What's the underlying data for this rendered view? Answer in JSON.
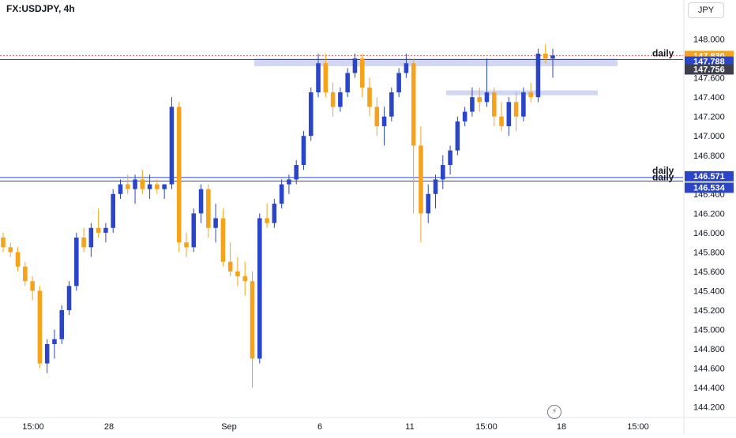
{
  "symbol": "FX:USDJPY, 4h",
  "currency": "JPY",
  "colors": {
    "up": "#2a45c8",
    "down": "#f7a21b",
    "zone": "#c5cdf0",
    "line": "#2a45c8",
    "last_price_bg": "#f7a21b",
    "level_bg": "#2a45c8",
    "grey_bg": "#3d404a"
  },
  "icons": {
    "replay": "replay-icon"
  },
  "chart_data": {
    "type": "candlestick",
    "y_axis": {
      "ticks": [
        "148.000",
        "147.800",
        "147.600",
        "147.400",
        "147.200",
        "147.000",
        "146.800",
        "146.600",
        "146.400",
        "146.200",
        "146.000",
        "145.800",
        "145.600",
        "145.400",
        "145.200",
        "145.000",
        "144.800",
        "144.600",
        "144.400",
        "144.200"
      ],
      "range": [
        144.1,
        148.2
      ]
    },
    "x_axis": {
      "ticks": [
        "15:00",
        "28",
        "Sep",
        "6",
        "11",
        "15:00",
        "18",
        "15:00"
      ]
    },
    "price_labels": [
      {
        "text": "147.830",
        "value": 147.83,
        "style": "last"
      },
      {
        "text": "147.788",
        "value": 147.788,
        "style": "level"
      },
      {
        "text": "147.756",
        "value": 147.756,
        "style": "grey"
      },
      {
        "text": "146.571",
        "value": 146.571,
        "style": "level"
      },
      {
        "text": "146.534",
        "value": 146.534,
        "style": "level"
      }
    ],
    "levels": [
      {
        "value": 147.788,
        "label": "daily"
      },
      {
        "value": 146.571,
        "label": "daily"
      },
      {
        "value": 146.534,
        "label": "daily"
      }
    ],
    "zones": [
      {
        "from": 147.72,
        "to": 147.8
      },
      {
        "from": 147.42,
        "to": 147.47
      }
    ],
    "candles": [
      [
        145.95,
        146.0,
        145.8,
        145.85
      ],
      [
        145.85,
        145.9,
        145.75,
        145.8
      ],
      [
        145.8,
        145.85,
        145.6,
        145.65
      ],
      [
        145.65,
        145.7,
        145.45,
        145.5
      ],
      [
        145.5,
        145.55,
        145.3,
        145.4
      ],
      [
        145.4,
        145.45,
        144.6,
        144.65
      ],
      [
        144.65,
        144.9,
        144.55,
        144.85
      ],
      [
        144.85,
        145.0,
        144.7,
        144.9
      ],
      [
        144.9,
        145.25,
        144.85,
        145.2
      ],
      [
        145.2,
        145.5,
        145.15,
        145.45
      ],
      [
        145.45,
        146.0,
        145.4,
        145.95
      ],
      [
        145.95,
        146.05,
        145.8,
        145.85
      ],
      [
        145.85,
        146.1,
        145.75,
        146.05
      ],
      [
        146.05,
        146.25,
        145.95,
        146.0
      ],
      [
        146.0,
        146.1,
        145.9,
        146.05
      ],
      [
        146.05,
        146.45,
        146.0,
        146.4
      ],
      [
        146.4,
        146.55,
        146.35,
        146.5
      ],
      [
        146.5,
        146.6,
        146.4,
        146.45
      ],
      [
        146.45,
        146.6,
        146.3,
        146.55
      ],
      [
        146.55,
        146.65,
        146.4,
        146.45
      ],
      [
        146.45,
        146.6,
        146.35,
        146.5
      ],
      [
        146.5,
        146.55,
        146.4,
        146.45
      ],
      [
        146.45,
        146.5,
        146.35,
        146.5
      ],
      [
        146.5,
        147.4,
        146.45,
        147.3
      ],
      [
        147.3,
        147.35,
        145.8,
        145.9
      ],
      [
        145.9,
        146.0,
        145.75,
        145.85
      ],
      [
        145.85,
        146.25,
        145.8,
        146.2
      ],
      [
        146.2,
        146.5,
        146.1,
        146.45
      ],
      [
        146.45,
        146.5,
        145.95,
        146.05
      ],
      [
        146.05,
        146.3,
        145.9,
        146.15
      ],
      [
        146.15,
        146.25,
        145.65,
        145.7
      ],
      [
        145.7,
        145.9,
        145.55,
        145.6
      ],
      [
        145.6,
        145.75,
        145.45,
        145.55
      ],
      [
        145.55,
        145.7,
        145.35,
        145.5
      ],
      [
        145.5,
        145.6,
        144.4,
        144.7
      ],
      [
        144.7,
        146.2,
        144.65,
        146.15
      ],
      [
        146.15,
        146.3,
        146.05,
        146.1
      ],
      [
        146.1,
        146.35,
        146.05,
        146.3
      ],
      [
        146.3,
        146.55,
        146.25,
        146.5
      ],
      [
        146.5,
        146.6,
        146.4,
        146.55
      ],
      [
        146.55,
        146.75,
        146.5,
        146.7
      ],
      [
        146.7,
        147.05,
        146.65,
        147.0
      ],
      [
        147.0,
        147.5,
        146.95,
        147.45
      ],
      [
        147.45,
        147.85,
        147.4,
        147.75
      ],
      [
        147.75,
        147.85,
        147.4,
        147.45
      ],
      [
        147.45,
        147.55,
        147.2,
        147.3
      ],
      [
        147.3,
        147.5,
        147.25,
        147.45
      ],
      [
        147.45,
        147.7,
        147.4,
        147.65
      ],
      [
        147.65,
        147.85,
        147.6,
        147.8
      ],
      [
        147.8,
        147.85,
        147.4,
        147.5
      ],
      [
        147.5,
        147.6,
        147.2,
        147.3
      ],
      [
        147.3,
        147.4,
        147.0,
        147.1
      ],
      [
        147.1,
        147.3,
        146.9,
        147.2
      ],
      [
        147.2,
        147.5,
        147.15,
        147.45
      ],
      [
        147.45,
        147.7,
        147.4,
        147.65
      ],
      [
        147.65,
        147.85,
        147.6,
        147.75
      ],
      [
        147.75,
        147.8,
        146.2,
        146.9
      ],
      [
        146.9,
        147.1,
        145.9,
        146.2
      ],
      [
        146.2,
        146.5,
        146.1,
        146.4
      ],
      [
        146.4,
        146.6,
        146.25,
        146.55
      ],
      [
        146.55,
        146.8,
        146.45,
        146.7
      ],
      [
        146.7,
        146.9,
        146.6,
        146.85
      ],
      [
        146.85,
        147.2,
        146.8,
        147.15
      ],
      [
        147.15,
        147.3,
        147.1,
        147.25
      ],
      [
        147.25,
        147.5,
        147.2,
        147.4
      ],
      [
        147.4,
        147.5,
        147.25,
        147.35
      ],
      [
        147.35,
        147.8,
        147.3,
        147.45
      ],
      [
        147.45,
        147.5,
        147.1,
        147.2
      ],
      [
        147.2,
        147.35,
        147.05,
        147.1
      ],
      [
        147.1,
        147.4,
        147.0,
        147.35
      ],
      [
        147.35,
        147.45,
        147.05,
        147.2
      ],
      [
        147.2,
        147.5,
        147.15,
        147.45
      ],
      [
        147.45,
        147.55,
        147.35,
        147.4
      ],
      [
        147.4,
        147.9,
        147.35,
        147.85
      ],
      [
        147.85,
        147.95,
        147.75,
        147.8
      ],
      [
        147.8,
        147.9,
        147.6,
        147.83
      ]
    ]
  }
}
